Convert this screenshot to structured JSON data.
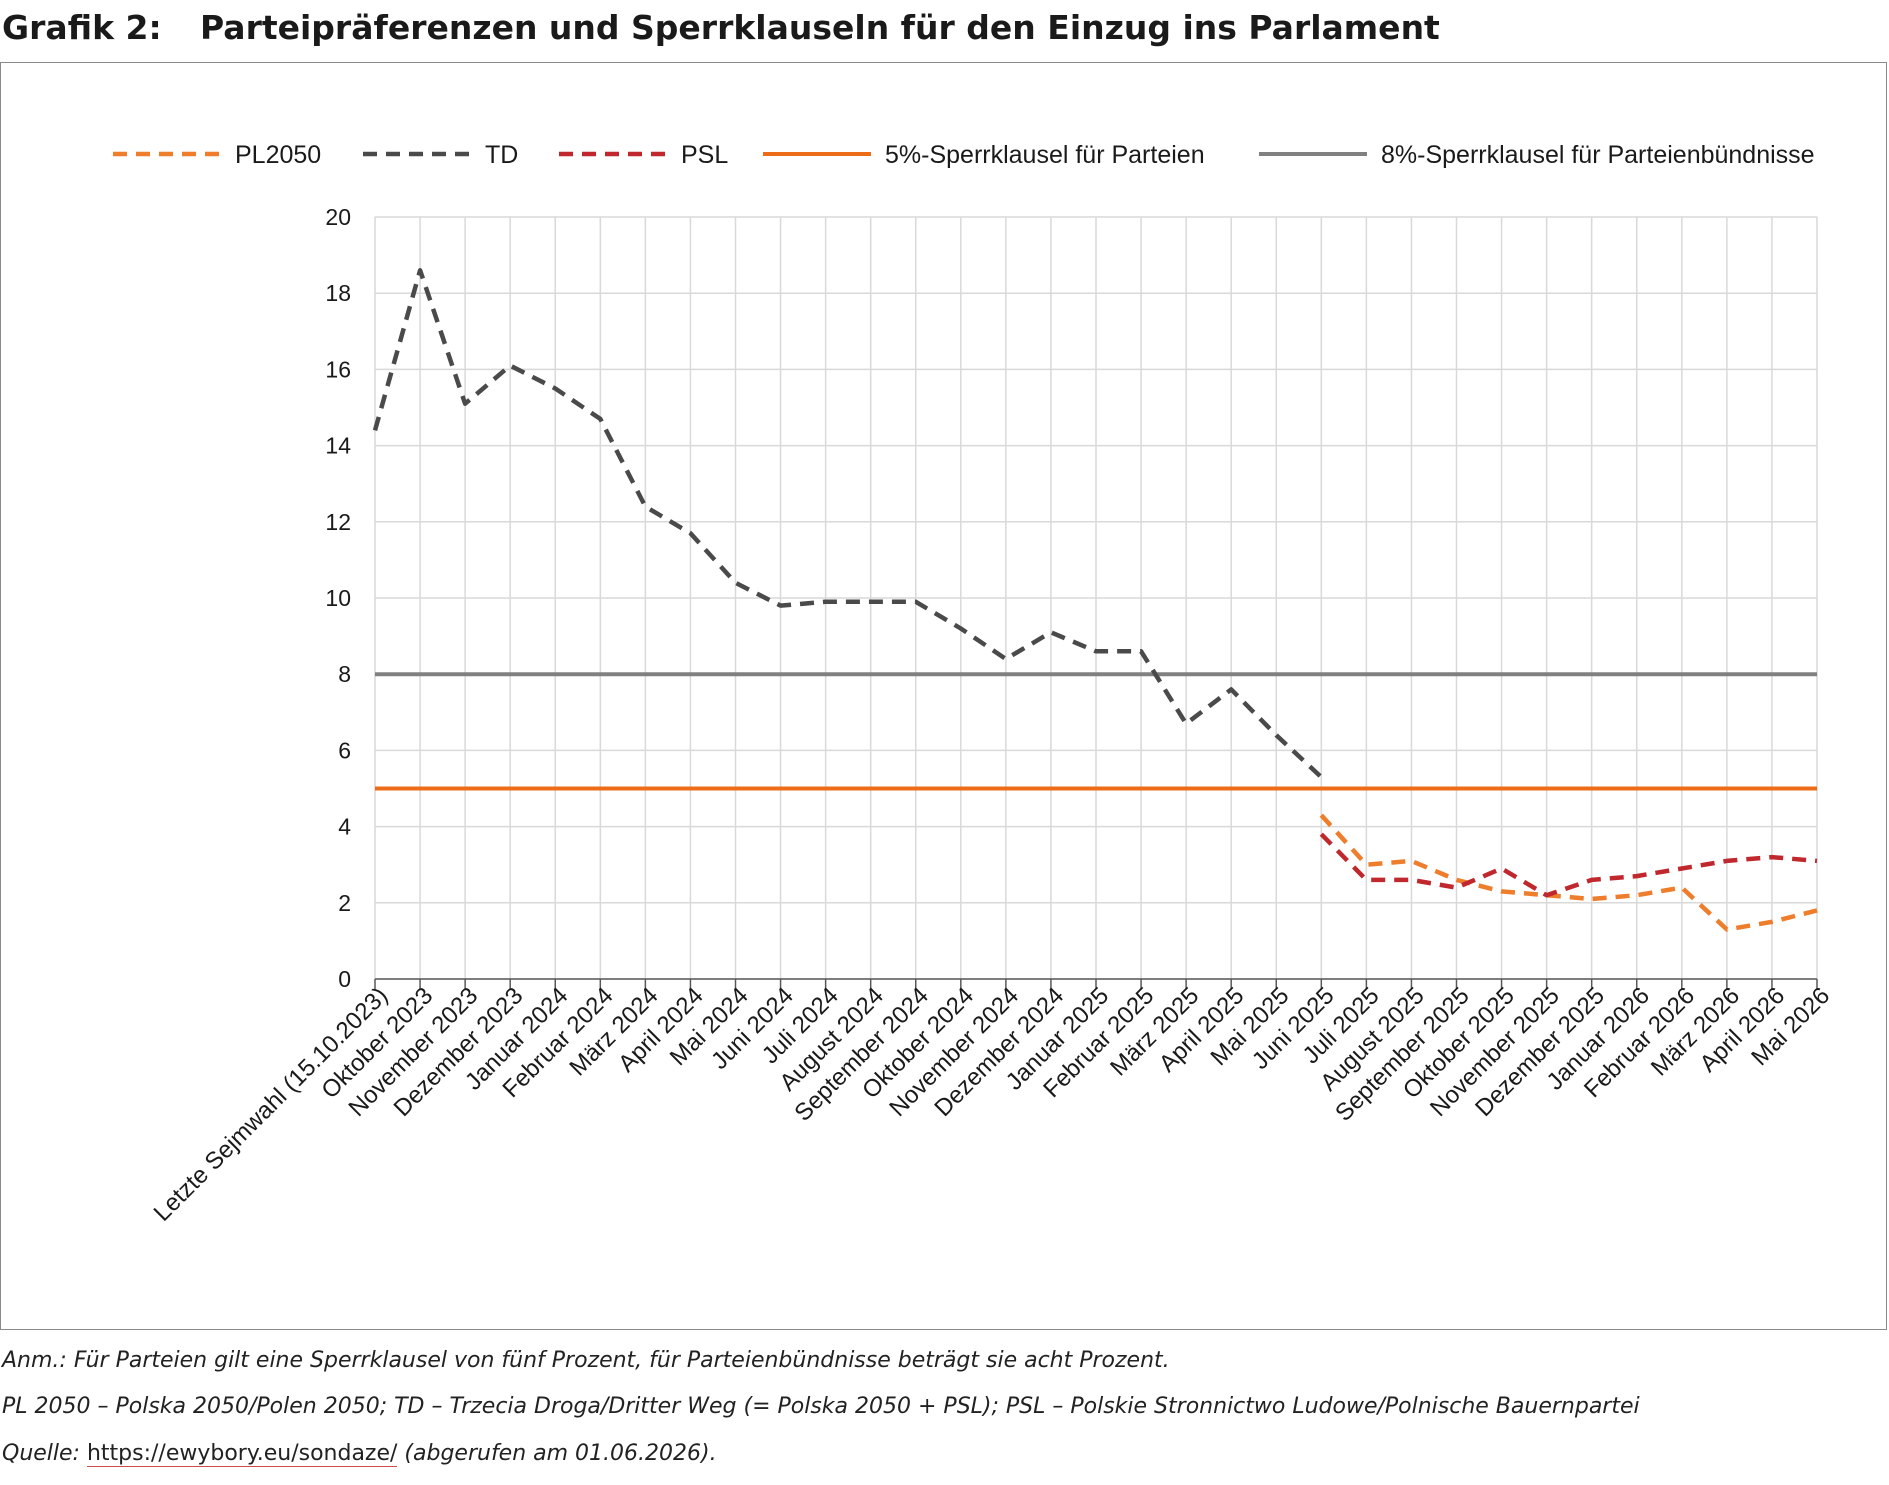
{
  "heading": {
    "number": "Grafik 2:",
    "title": "Parteipräferenzen und Sperrklauseln für den Einzug ins Parlament"
  },
  "notes": {
    "note": "Anm.: Für Parteien gilt eine Sperrklausel von fünf Prozent, für Parteienbündnisse beträgt sie acht Prozent.",
    "abbreviations": "PL 2050 – Polska 2050/Polen 2050; TD – Trzecia Droga/Dritter Weg (= Polska 2050 + PSL); PSL – Polskie Stronnictwo Ludowe/Polnische Bauernpartei",
    "source_prefix": "Quelle:",
    "source_link": "https://ewybory.eu/sondaze/",
    "source_suffix": "(abgerufen am 01.06.2026)."
  },
  "chart_data": {
    "type": "line",
    "title": "",
    "xlabel": "",
    "ylabel": "",
    "ylim": [
      0,
      20
    ],
    "yticks": [
      0,
      2,
      4,
      6,
      8,
      10,
      12,
      14,
      16,
      18,
      20
    ],
    "grid": true,
    "legend_position": "top",
    "categories": [
      "Letzte Sejmwahl (15.10.2023)",
      "Oktober 2023",
      "November 2023",
      "Dezember 2023",
      "Januar 2024",
      "Februar 2024",
      "März 2024",
      "April 2024",
      "Mai 2024",
      "Juni 2024",
      "Juli 2024",
      "August 2024",
      "September 2024",
      "Oktober 2024",
      "November 2024",
      "Dezember 2024",
      "Januar 2025",
      "Februar 2025",
      "März 2025",
      "April 2025",
      "Mai 2025",
      "Juni 2025",
      "Juli 2025",
      "August 2025",
      "September 2025",
      "Oktober 2025",
      "November 2025",
      "Dezember 2025",
      "Januar 2026",
      "Februar 2026",
      "März 2026",
      "April 2026",
      "Mai 2026"
    ],
    "series": [
      {
        "name": "PL2050",
        "color": "#ee7d2c",
        "dash": "dashed",
        "values": [
          null,
          null,
          null,
          null,
          null,
          null,
          null,
          null,
          null,
          null,
          null,
          null,
          null,
          null,
          null,
          null,
          null,
          null,
          null,
          null,
          null,
          4.3,
          3.0,
          3.1,
          2.6,
          2.3,
          2.2,
          2.1,
          2.2,
          2.4,
          1.3,
          1.5,
          1.8
        ]
      },
      {
        "name": "TD",
        "color": "#4a4a4a",
        "dash": "dashed",
        "values": [
          14.4,
          18.6,
          15.1,
          16.1,
          15.5,
          14.7,
          12.4,
          11.7,
          10.4,
          9.8,
          9.9,
          9.9,
          9.9,
          9.2,
          8.4,
          9.1,
          8.6,
          8.6,
          6.7,
          7.6,
          6.4,
          5.3,
          null,
          null,
          null,
          null,
          null,
          null,
          null,
          null,
          null,
          null,
          null
        ]
      },
      {
        "name": "PSL",
        "color": "#c0282d",
        "dash": "dashed",
        "values": [
          null,
          null,
          null,
          null,
          null,
          null,
          null,
          null,
          null,
          null,
          null,
          null,
          null,
          null,
          null,
          null,
          null,
          null,
          null,
          null,
          null,
          3.8,
          2.6,
          2.6,
          2.4,
          2.9,
          2.2,
          2.6,
          2.7,
          2.9,
          3.1,
          3.2,
          3.1
        ]
      },
      {
        "name": "5%-Sperrklausel für Parteien",
        "color": "#ec6c1a",
        "dash": "solid",
        "values": [
          5,
          5,
          5,
          5,
          5,
          5,
          5,
          5,
          5,
          5,
          5,
          5,
          5,
          5,
          5,
          5,
          5,
          5,
          5,
          5,
          5,
          5,
          5,
          5,
          5,
          5,
          5,
          5,
          5,
          5,
          5,
          5,
          5
        ]
      },
      {
        "name": "8%-Sperrklausel für Parteienbündnisse",
        "color": "#808080",
        "dash": "solid",
        "values": [
          8,
          8,
          8,
          8,
          8,
          8,
          8,
          8,
          8,
          8,
          8,
          8,
          8,
          8,
          8,
          8,
          8,
          8,
          8,
          8,
          8,
          8,
          8,
          8,
          8,
          8,
          8,
          8,
          8,
          8,
          8,
          8,
          8
        ]
      }
    ]
  }
}
